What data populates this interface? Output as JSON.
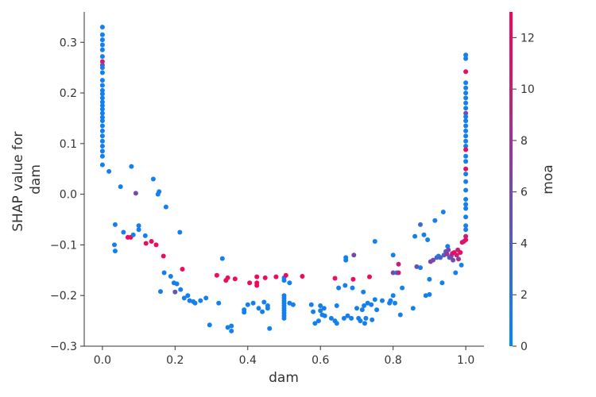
{
  "chart_data": {
    "type": "scatter",
    "title": "",
    "xlabel": "dam",
    "ylabel_lines": [
      "SHAP value for",
      "dam"
    ],
    "xlim": [
      -0.05,
      1.05
    ],
    "ylim": [
      -0.3,
      0.36
    ],
    "xticks": [
      0.0,
      0.2,
      0.4,
      0.6,
      0.8,
      1.0
    ],
    "xtick_labels": [
      "0.0",
      "0.2",
      "0.4",
      "0.6",
      "0.8",
      "1.0"
    ],
    "yticks": [
      -0.3,
      -0.2,
      -0.1,
      0.0,
      0.1,
      0.2,
      0.3
    ],
    "ytick_labels": [
      "−0.3",
      "−0.2",
      "−0.1",
      "0.0",
      "0.1",
      "0.2",
      "0.3"
    ],
    "grid": false,
    "colorbar": {
      "label": "moa",
      "range": [
        0,
        13
      ],
      "ticks": [
        0,
        2,
        4,
        6,
        8,
        10,
        12
      ],
      "tick_labels": [
        "0",
        "2",
        "4",
        "6",
        "8",
        "10",
        "12"
      ],
      "color_low": "#008afb",
      "color_high": "#ff0052"
    },
    "points": [
      [
        0.0,
        0.33,
        1
      ],
      [
        0.0,
        0.315,
        1
      ],
      [
        0.0,
        0.305,
        1
      ],
      [
        0.0,
        0.295,
        1
      ],
      [
        0.0,
        0.285,
        1
      ],
      [
        0.0,
        0.272,
        1
      ],
      [
        0.0,
        0.262,
        10
      ],
      [
        0.0,
        0.255,
        6
      ],
      [
        0.0,
        0.25,
        1
      ],
      [
        0.0,
        0.24,
        1
      ],
      [
        0.0,
        0.225,
        1
      ],
      [
        0.0,
        0.215,
        1
      ],
      [
        0.0,
        0.205,
        1
      ],
      [
        0.0,
        0.198,
        1
      ],
      [
        0.0,
        0.19,
        1
      ],
      [
        0.0,
        0.182,
        1
      ],
      [
        0.0,
        0.175,
        1
      ],
      [
        0.0,
        0.168,
        1
      ],
      [
        0.0,
        0.16,
        1
      ],
      [
        0.0,
        0.152,
        1
      ],
      [
        0.0,
        0.145,
        1
      ],
      [
        0.0,
        0.135,
        1
      ],
      [
        0.0,
        0.125,
        1
      ],
      [
        0.0,
        0.115,
        1
      ],
      [
        0.0,
        0.105,
        1
      ],
      [
        0.0,
        0.095,
        1
      ],
      [
        0.0,
        0.085,
        1
      ],
      [
        0.0,
        0.075,
        1
      ],
      [
        0.0,
        0.058,
        1
      ],
      [
        0.018,
        0.045,
        1
      ],
      [
        0.035,
        -0.06,
        1
      ],
      [
        0.033,
        -0.1,
        1
      ],
      [
        0.035,
        -0.112,
        1
      ],
      [
        0.05,
        0.015,
        1
      ],
      [
        0.058,
        -0.075,
        1
      ],
      [
        0.07,
        -0.085,
        12
      ],
      [
        0.078,
        -0.085,
        12
      ],
      [
        0.08,
        0.055,
        1
      ],
      [
        0.085,
        -0.08,
        1
      ],
      [
        0.092,
        0.002,
        6
      ],
      [
        0.1,
        -0.062,
        1
      ],
      [
        0.1,
        -0.07,
        1
      ],
      [
        0.118,
        -0.082,
        1
      ],
      [
        0.12,
        -0.097,
        12
      ],
      [
        0.135,
        -0.093,
        12
      ],
      [
        0.14,
        0.03,
        1
      ],
      [
        0.148,
        -0.1,
        12
      ],
      [
        0.153,
        0.0,
        1
      ],
      [
        0.156,
        0.005,
        1
      ],
      [
        0.16,
        -0.192,
        1
      ],
      [
        0.168,
        -0.122,
        12
      ],
      [
        0.17,
        -0.155,
        1
      ],
      [
        0.175,
        -0.025,
        1
      ],
      [
        0.188,
        -0.162,
        1
      ],
      [
        0.197,
        -0.175,
        1
      ],
      [
        0.2,
        -0.193,
        5
      ],
      [
        0.205,
        -0.177,
        1
      ],
      [
        0.213,
        -0.075,
        1
      ],
      [
        0.215,
        -0.188,
        1
      ],
      [
        0.22,
        -0.148,
        12
      ],
      [
        0.225,
        -0.205,
        1
      ],
      [
        0.235,
        -0.2,
        1
      ],
      [
        0.24,
        -0.21,
        1
      ],
      [
        0.25,
        -0.212,
        1
      ],
      [
        0.255,
        -0.215,
        1
      ],
      [
        0.27,
        -0.21,
        1
      ],
      [
        0.285,
        -0.205,
        1
      ],
      [
        0.295,
        -0.258,
        1
      ],
      [
        0.315,
        -0.16,
        12
      ],
      [
        0.32,
        -0.215,
        1
      ],
      [
        0.33,
        -0.127,
        1
      ],
      [
        0.34,
        -0.17,
        12
      ],
      [
        0.345,
        -0.165,
        12
      ],
      [
        0.345,
        -0.263,
        1
      ],
      [
        0.355,
        -0.27,
        1
      ],
      [
        0.355,
        -0.26,
        1
      ],
      [
        0.365,
        -0.167,
        12
      ],
      [
        0.39,
        -0.233,
        1
      ],
      [
        0.39,
        -0.228,
        1
      ],
      [
        0.4,
        -0.218,
        1
      ],
      [
        0.405,
        -0.175,
        12
      ],
      [
        0.415,
        -0.215,
        1
      ],
      [
        0.425,
        -0.163,
        12
      ],
      [
        0.425,
        -0.175,
        12
      ],
      [
        0.425,
        -0.18,
        12
      ],
      [
        0.43,
        -0.225,
        1
      ],
      [
        0.44,
        -0.232,
        1
      ],
      [
        0.445,
        -0.213,
        1
      ],
      [
        0.448,
        -0.165,
        12
      ],
      [
        0.455,
        -0.22,
        1
      ],
      [
        0.455,
        -0.225,
        1
      ],
      [
        0.46,
        -0.265,
        1
      ],
      [
        0.478,
        -0.163,
        12
      ],
      [
        0.5,
        -0.165,
        1
      ],
      [
        0.5,
        -0.17,
        1
      ],
      [
        0.5,
        -0.2,
        1
      ],
      [
        0.5,
        -0.205,
        1
      ],
      [
        0.5,
        -0.21,
        1
      ],
      [
        0.5,
        -0.215,
        1
      ],
      [
        0.5,
        -0.22,
        1
      ],
      [
        0.5,
        -0.225,
        1
      ],
      [
        0.5,
        -0.23,
        1
      ],
      [
        0.5,
        -0.235,
        1
      ],
      [
        0.5,
        -0.24,
        1
      ],
      [
        0.5,
        -0.245,
        1
      ],
      [
        0.505,
        -0.16,
        12
      ],
      [
        0.515,
        -0.175,
        1
      ],
      [
        0.515,
        -0.215,
        1
      ],
      [
        0.525,
        -0.218,
        1
      ],
      [
        0.55,
        -0.162,
        12
      ],
      [
        0.575,
        -0.218,
        1
      ],
      [
        0.58,
        -0.232,
        1
      ],
      [
        0.585,
        -0.255,
        1
      ],
      [
        0.595,
        -0.25,
        1
      ],
      [
        0.6,
        -0.23,
        1
      ],
      [
        0.6,
        -0.22,
        1
      ],
      [
        0.605,
        -0.238,
        1
      ],
      [
        0.61,
        -0.225,
        1
      ],
      [
        0.612,
        -0.24,
        1
      ],
      [
        0.63,
        -0.245,
        1
      ],
      [
        0.64,
        -0.25,
        1
      ],
      [
        0.64,
        -0.166,
        12
      ],
      [
        0.645,
        -0.255,
        1
      ],
      [
        0.645,
        -0.22,
        1
      ],
      [
        0.65,
        -0.185,
        1
      ],
      [
        0.665,
        -0.245,
        1
      ],
      [
        0.668,
        -0.18,
        1
      ],
      [
        0.67,
        -0.13,
        1
      ],
      [
        0.67,
        -0.125,
        1
      ],
      [
        0.675,
        -0.24,
        1
      ],
      [
        0.685,
        -0.245,
        1
      ],
      [
        0.688,
        -0.185,
        1
      ],
      [
        0.69,
        -0.168,
        12
      ],
      [
        0.692,
        -0.12,
        6
      ],
      [
        0.7,
        -0.225,
        1
      ],
      [
        0.705,
        -0.245,
        1
      ],
      [
        0.71,
        -0.25,
        1
      ],
      [
        0.715,
        -0.228,
        1
      ],
      [
        0.718,
        -0.193,
        1
      ],
      [
        0.72,
        -0.22,
        1
      ],
      [
        0.722,
        -0.255,
        1
      ],
      [
        0.725,
        -0.245,
        1
      ],
      [
        0.73,
        -0.215,
        1
      ],
      [
        0.735,
        -0.163,
        12
      ],
      [
        0.74,
        -0.218,
        1
      ],
      [
        0.742,
        -0.248,
        1
      ],
      [
        0.75,
        -0.093,
        1
      ],
      [
        0.75,
        -0.208,
        1
      ],
      [
        0.755,
        -0.228,
        1
      ],
      [
        0.77,
        -0.21,
        1
      ],
      [
        0.79,
        -0.215,
        1
      ],
      [
        0.793,
        -0.21,
        1
      ],
      [
        0.8,
        -0.12,
        1
      ],
      [
        0.8,
        -0.2,
        1
      ],
      [
        0.8,
        -0.155,
        6
      ],
      [
        0.805,
        -0.215,
        1
      ],
      [
        0.81,
        -0.155,
        1
      ],
      [
        0.815,
        -0.138,
        10
      ],
      [
        0.815,
        -0.155,
        10
      ],
      [
        0.82,
        -0.238,
        1
      ],
      [
        0.825,
        -0.185,
        1
      ],
      [
        0.855,
        -0.225,
        1
      ],
      [
        0.86,
        -0.083,
        1
      ],
      [
        0.865,
        -0.143,
        6
      ],
      [
        0.875,
        -0.145,
        1
      ],
      [
        0.875,
        -0.06,
        3
      ],
      [
        0.885,
        -0.08,
        1
      ],
      [
        0.89,
        -0.2,
        1
      ],
      [
        0.895,
        -0.09,
        1
      ],
      [
        0.9,
        -0.198,
        1
      ],
      [
        0.9,
        -0.168,
        1
      ],
      [
        0.903,
        -0.133,
        6
      ],
      [
        0.91,
        -0.13,
        6
      ],
      [
        0.915,
        -0.052,
        1
      ],
      [
        0.92,
        -0.125,
        4
      ],
      [
        0.925,
        -0.122,
        1
      ],
      [
        0.93,
        -0.125,
        4
      ],
      [
        0.935,
        -0.175,
        1
      ],
      [
        0.938,
        -0.035,
        1
      ],
      [
        0.94,
        -0.12,
        4
      ],
      [
        0.945,
        -0.113,
        4
      ],
      [
        0.948,
        -0.118,
        8
      ],
      [
        0.95,
        -0.103,
        1
      ],
      [
        0.952,
        -0.11,
        6
      ],
      [
        0.955,
        -0.125,
        4
      ],
      [
        0.96,
        -0.122,
        6
      ],
      [
        0.963,
        -0.117,
        10
      ],
      [
        0.965,
        -0.13,
        6
      ],
      [
        0.968,
        -0.115,
        12
      ],
      [
        0.972,
        -0.155,
        1
      ],
      [
        0.975,
        -0.12,
        10
      ],
      [
        0.978,
        -0.11,
        10
      ],
      [
        0.98,
        -0.128,
        8
      ],
      [
        0.985,
        -0.115,
        12
      ],
      [
        0.988,
        -0.14,
        1
      ],
      [
        0.99,
        -0.095,
        12
      ],
      [
        0.995,
        -0.093,
        10
      ],
      [
        1.0,
        0.275,
        1
      ],
      [
        1.0,
        0.268,
        1
      ],
      [
        1.0,
        0.242,
        12
      ],
      [
        1.0,
        0.22,
        1
      ],
      [
        1.0,
        0.21,
        1
      ],
      [
        1.0,
        0.2,
        1
      ],
      [
        1.0,
        0.19,
        1
      ],
      [
        1.0,
        0.18,
        1
      ],
      [
        1.0,
        0.17,
        1
      ],
      [
        1.0,
        0.16,
        6
      ],
      [
        1.0,
        0.153,
        1
      ],
      [
        1.0,
        0.145,
        1
      ],
      [
        1.0,
        0.135,
        1
      ],
      [
        1.0,
        0.125,
        1
      ],
      [
        1.0,
        0.115,
        1
      ],
      [
        1.0,
        0.105,
        1
      ],
      [
        1.0,
        0.095,
        1
      ],
      [
        1.0,
        0.088,
        12
      ],
      [
        1.0,
        0.075,
        1
      ],
      [
        1.0,
        0.065,
        1
      ],
      [
        1.0,
        0.05,
        12
      ],
      [
        1.0,
        0.04,
        1
      ],
      [
        1.0,
        0.025,
        1
      ],
      [
        1.0,
        0.008,
        1
      ],
      [
        1.0,
        -0.01,
        1
      ],
      [
        1.0,
        -0.02,
        1
      ],
      [
        1.0,
        -0.028,
        1
      ],
      [
        1.0,
        -0.045,
        1
      ],
      [
        1.0,
        -0.062,
        1
      ],
      [
        1.0,
        -0.07,
        1
      ],
      [
        1.0,
        -0.083,
        10
      ],
      [
        1.0,
        -0.09,
        12
      ]
    ]
  }
}
